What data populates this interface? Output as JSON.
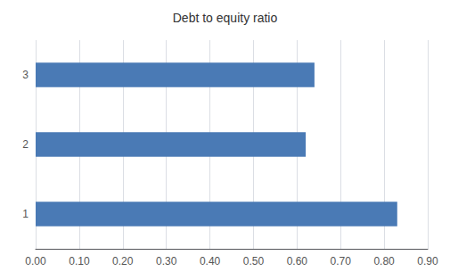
{
  "chart_data": {
    "type": "bar",
    "orientation": "horizontal",
    "title": "Debt to equity ratio",
    "categories": [
      "1",
      "2",
      "3"
    ],
    "values": [
      0.83,
      0.62,
      0.64
    ],
    "color": "#4a7ab5",
    "xlim": [
      0.0,
      0.9
    ],
    "xticks": [
      {
        "value": 0.0,
        "label": "0.00"
      },
      {
        "value": 0.1,
        "label": "0.10"
      },
      {
        "value": 0.2,
        "label": "0.20"
      },
      {
        "value": 0.3,
        "label": "0.30"
      },
      {
        "value": 0.4,
        "label": "0.40"
      },
      {
        "value": 0.5,
        "label": "0.50"
      },
      {
        "value": 0.6,
        "label": "0.60"
      },
      {
        "value": 0.7,
        "label": "0.70"
      },
      {
        "value": 0.8,
        "label": "0.80"
      },
      {
        "value": 0.9,
        "label": "0.90"
      }
    ],
    "grid": true
  }
}
